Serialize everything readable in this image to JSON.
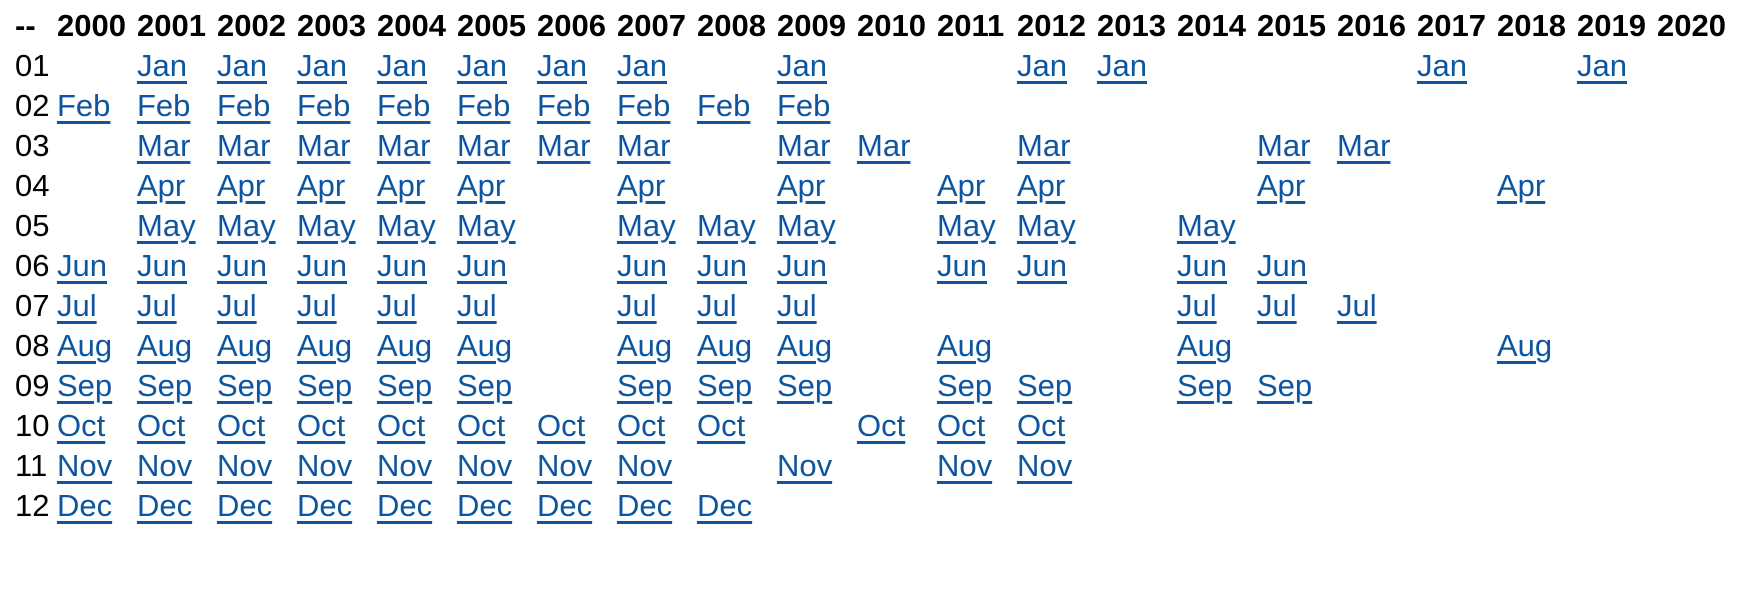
{
  "colors": {
    "background": "#ffffff",
    "header_text": "#000000",
    "row_label_text": "#000000",
    "link": "#0d55a0"
  },
  "calendar": {
    "corner_label": "--",
    "years": [
      "2000",
      "2001",
      "2002",
      "2003",
      "2004",
      "2005",
      "2006",
      "2007",
      "2008",
      "2009",
      "2010",
      "2011",
      "2012",
      "2013",
      "2014",
      "2015",
      "2016",
      "2017",
      "2018",
      "2019",
      "2020"
    ],
    "rows": [
      {
        "number": "01",
        "month": "Jan",
        "linked_years": [
          2001,
          2002,
          2003,
          2004,
          2005,
          2006,
          2007,
          2009,
          2012,
          2013,
          2017,
          2019
        ]
      },
      {
        "number": "02",
        "month": "Feb",
        "linked_years": [
          2000,
          2001,
          2002,
          2003,
          2004,
          2005,
          2006,
          2007,
          2008,
          2009
        ]
      },
      {
        "number": "03",
        "month": "Mar",
        "linked_years": [
          2001,
          2002,
          2003,
          2004,
          2005,
          2006,
          2007,
          2009,
          2010,
          2012,
          2015,
          2016
        ]
      },
      {
        "number": "04",
        "month": "Apr",
        "linked_years": [
          2001,
          2002,
          2003,
          2004,
          2005,
          2007,
          2009,
          2011,
          2012,
          2015,
          2018
        ]
      },
      {
        "number": "05",
        "month": "May",
        "linked_years": [
          2001,
          2002,
          2003,
          2004,
          2005,
          2007,
          2008,
          2009,
          2011,
          2012,
          2014
        ]
      },
      {
        "number": "06",
        "month": "Jun",
        "linked_years": [
          2000,
          2001,
          2002,
          2003,
          2004,
          2005,
          2007,
          2008,
          2009,
          2011,
          2012,
          2014,
          2015
        ]
      },
      {
        "number": "07",
        "month": "Jul",
        "linked_years": [
          2000,
          2001,
          2002,
          2003,
          2004,
          2005,
          2007,
          2008,
          2009,
          2014,
          2015,
          2016
        ]
      },
      {
        "number": "08",
        "month": "Aug",
        "linked_years": [
          2000,
          2001,
          2002,
          2003,
          2004,
          2005,
          2007,
          2008,
          2009,
          2011,
          2014,
          2018
        ]
      },
      {
        "number": "09",
        "month": "Sep",
        "linked_years": [
          2000,
          2001,
          2002,
          2003,
          2004,
          2005,
          2007,
          2008,
          2009,
          2011,
          2012,
          2014,
          2015
        ]
      },
      {
        "number": "10",
        "month": "Oct",
        "linked_years": [
          2000,
          2001,
          2002,
          2003,
          2004,
          2005,
          2006,
          2007,
          2008,
          2010,
          2011,
          2012
        ]
      },
      {
        "number": "11",
        "month": "Nov",
        "linked_years": [
          2000,
          2001,
          2002,
          2003,
          2004,
          2005,
          2006,
          2007,
          2009,
          2011,
          2012
        ]
      },
      {
        "number": "12",
        "month": "Dec",
        "linked_years": [
          2000,
          2001,
          2002,
          2003,
          2004,
          2005,
          2006,
          2007,
          2008
        ]
      }
    ]
  }
}
